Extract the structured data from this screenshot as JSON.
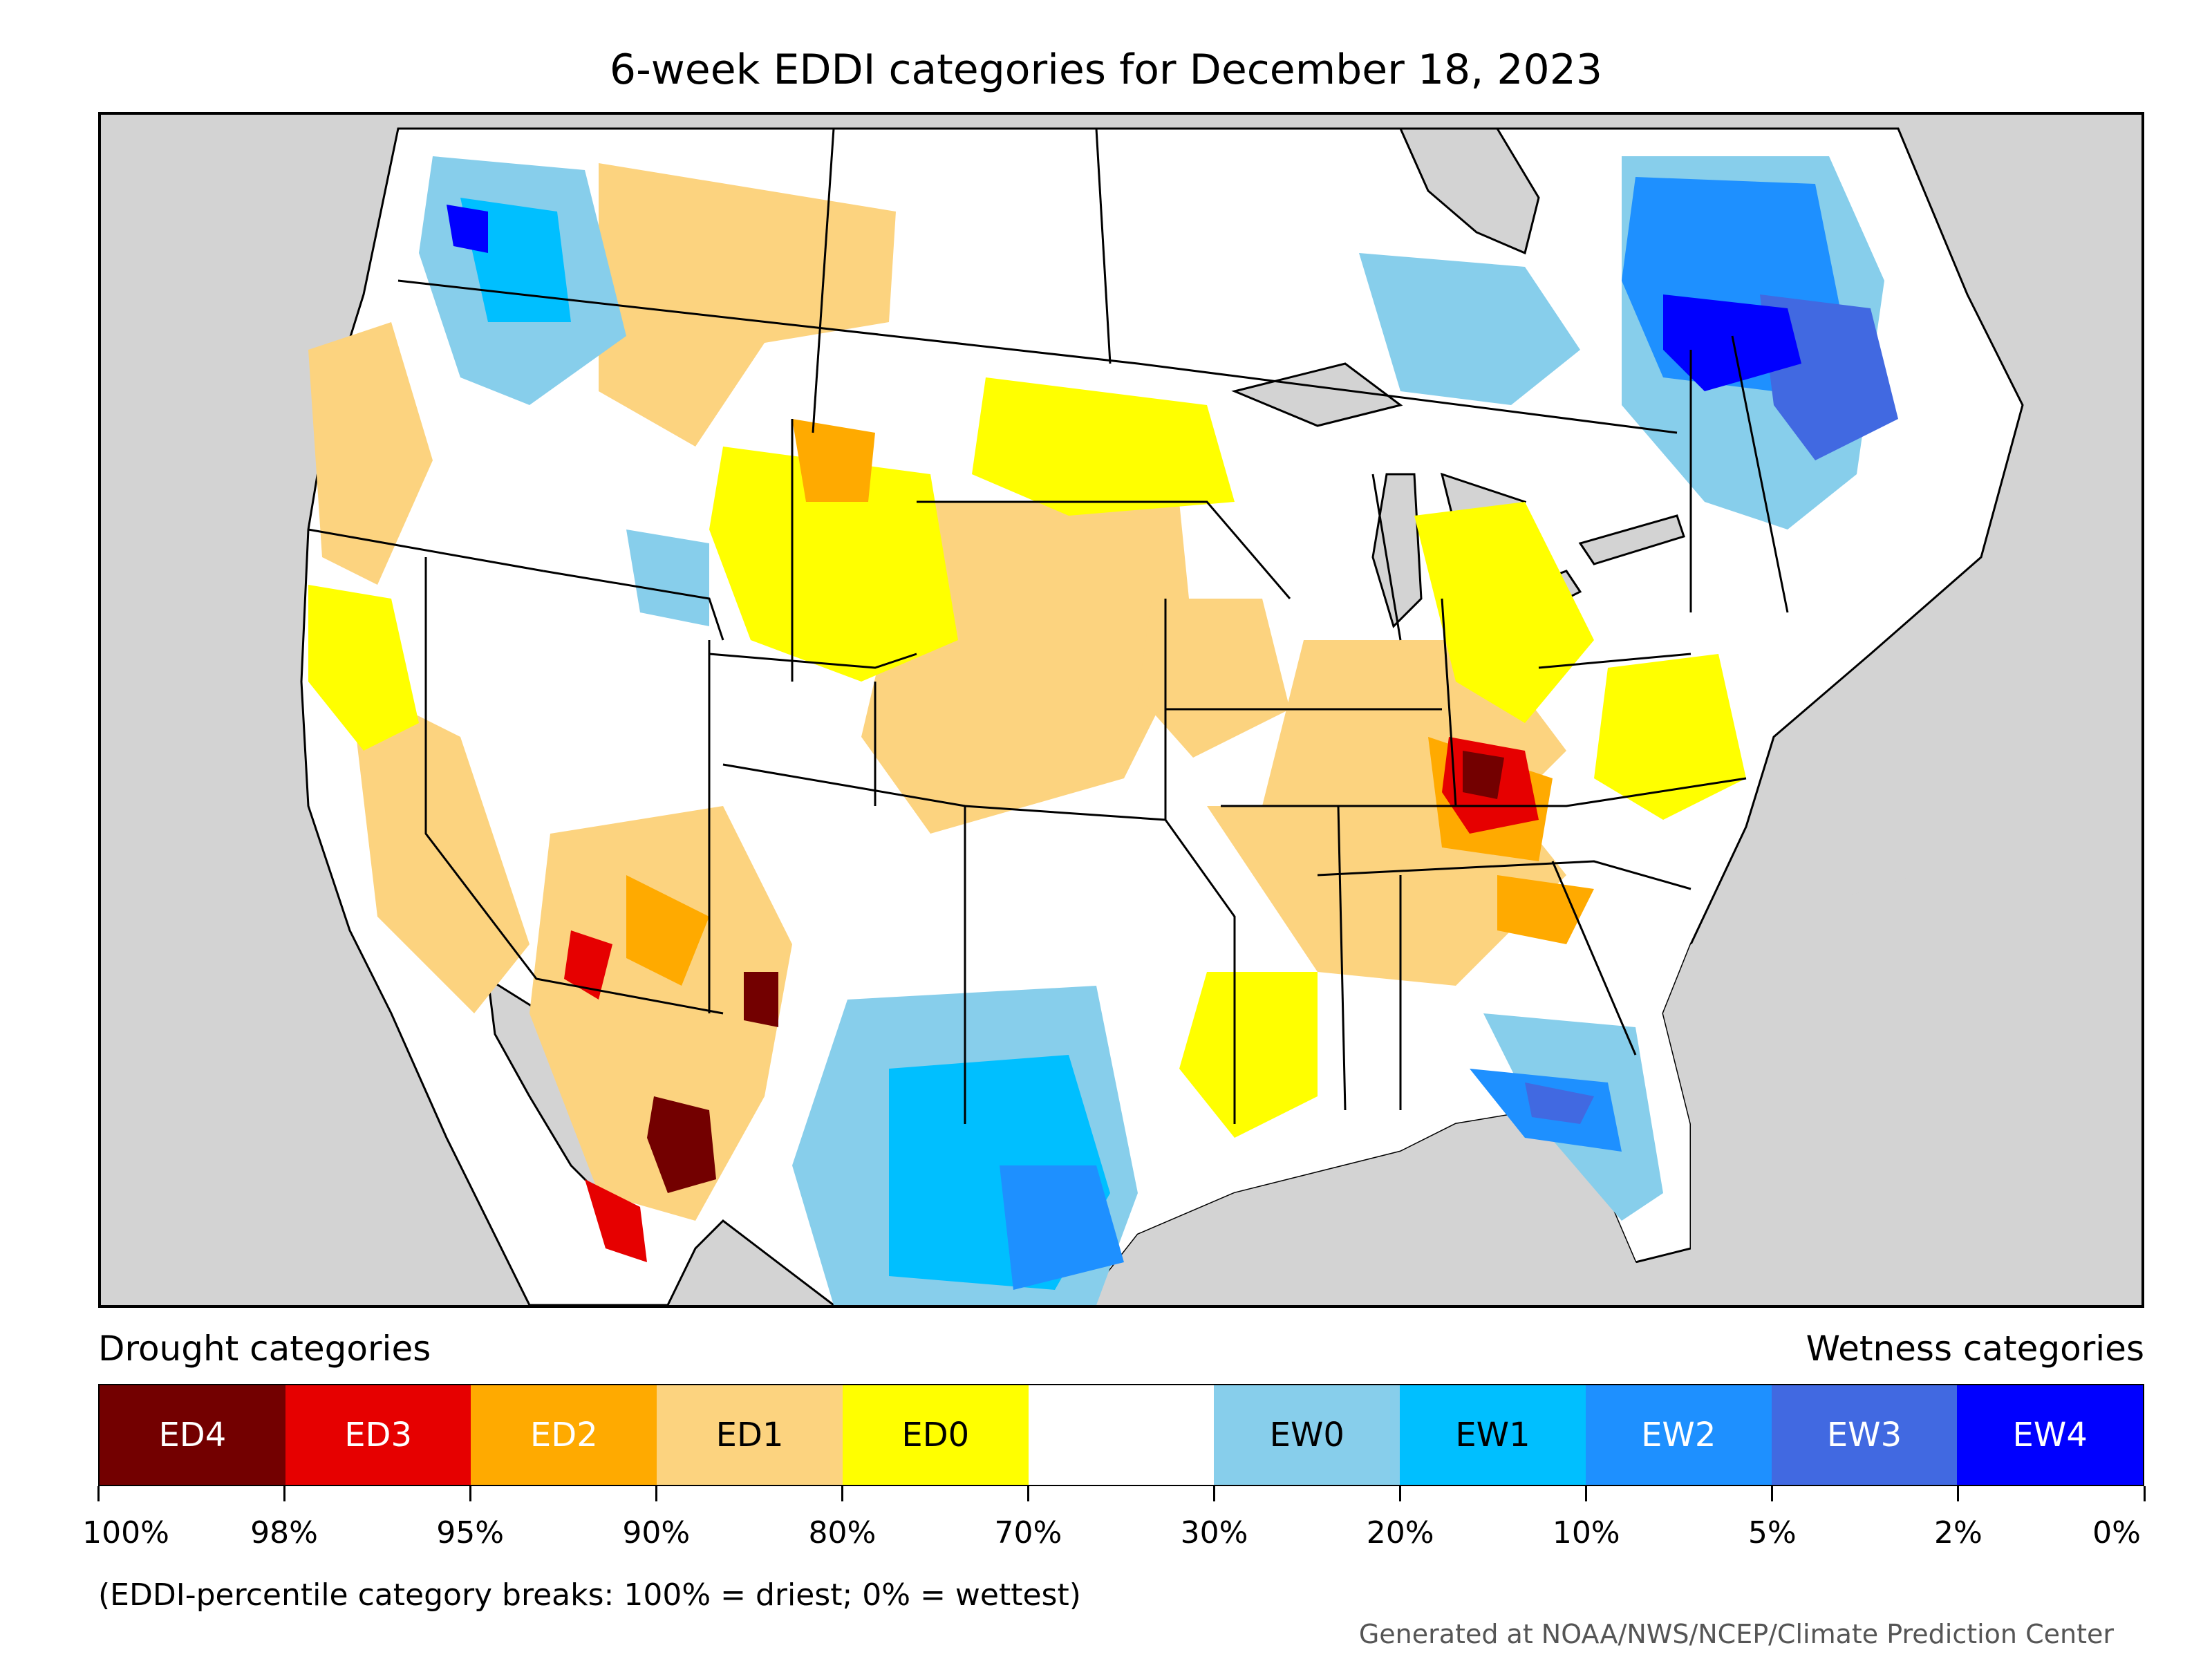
{
  "title": "6-week EDDI categories for December 18, 2023",
  "legend": {
    "drought_heading": "Drought categories",
    "wetness_heading": "Wetness categories",
    "categories": [
      {
        "label": "ED4",
        "color": "#730000",
        "text_color": "#ffffff"
      },
      {
        "label": "ED3",
        "color": "#e60000",
        "text_color": "#ffffff"
      },
      {
        "label": "ED2",
        "color": "#ffaa00",
        "text_color": "#ffffff"
      },
      {
        "label": "ED1",
        "color": "#fcd37f",
        "text_color": "#000000"
      },
      {
        "label": "ED0",
        "color": "#ffff00",
        "text_color": "#000000"
      },
      {
        "label": "",
        "color": "#ffffff",
        "text_color": "#000000"
      },
      {
        "label": "EW0",
        "color": "#87ceeb",
        "text_color": "#000000"
      },
      {
        "label": "EW1",
        "color": "#00bfff",
        "text_color": "#000000"
      },
      {
        "label": "EW2",
        "color": "#1e90ff",
        "text_color": "#ffffff"
      },
      {
        "label": "EW3",
        "color": "#4169e1",
        "text_color": "#ffffff"
      },
      {
        "label": "EW4",
        "color": "#0000ff",
        "text_color": "#ffffff"
      }
    ],
    "tick_labels": [
      "100%",
      "98%",
      "95%",
      "90%",
      "80%",
      "70%",
      "30%",
      "20%",
      "10%",
      "5%",
      "2%",
      "0%"
    ]
  },
  "note": "(EDDI-percentile category breaks: 100% = driest; 0% = wettest)",
  "credit": "Generated at NOAA/NWS/NCEP/Climate Prediction Center",
  "map": {
    "ocean_color": "#d3d3d3",
    "land_color": "#ffffff",
    "line_color": "#000000"
  }
}
